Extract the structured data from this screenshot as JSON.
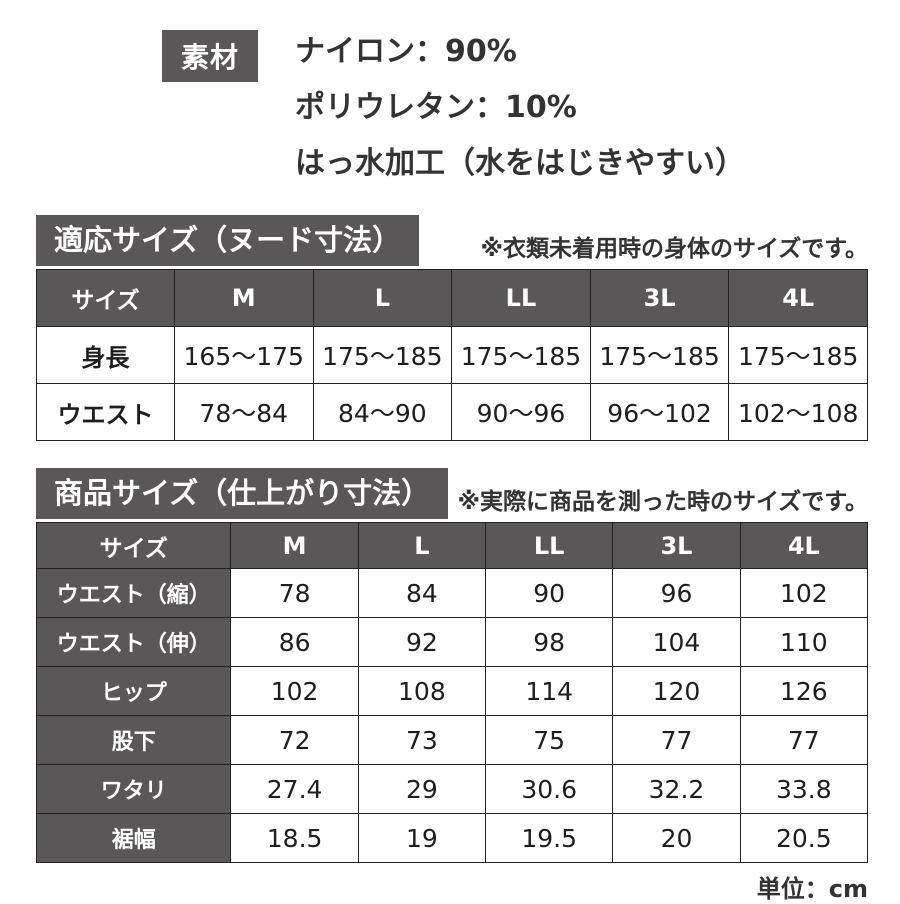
{
  "material": {
    "label": "素材",
    "lines": [
      "ナイロン：90%",
      "ポリウレタン：10%",
      "はっ水加工（水をはじきやすい）"
    ]
  },
  "sections": [
    {
      "title": "適応サイズ（ヌード寸法）",
      "note": "※衣類未着用時の身体のサイズです。",
      "table": {
        "header": [
          "サイズ",
          "M",
          "L",
          "LL",
          "3L",
          "4L"
        ],
        "rows": [
          {
            "label": "身長",
            "values": [
              "165～175",
              "175～185",
              "175～185",
              "175～185",
              "175～185"
            ]
          },
          {
            "label": "ウエスト",
            "values": [
              "78～84",
              "84～90",
              "90～96",
              "96～102",
              "102～108"
            ]
          }
        ]
      }
    },
    {
      "title": "商品サイズ（仕上がり寸法）",
      "note": "※実際に商品を測った時のサイズです。",
      "table": {
        "header": [
          "サイズ",
          "M",
          "L",
          "LL",
          "3L",
          "4L"
        ],
        "rows": [
          {
            "label": "ウエスト（縮）",
            "values": [
              "78",
              "84",
              "90",
              "96",
              "102"
            ]
          },
          {
            "label": "ウエスト（伸）",
            "values": [
              "86",
              "92",
              "98",
              "104",
              "110"
            ]
          },
          {
            "label": "ヒップ",
            "values": [
              "102",
              "108",
              "114",
              "120",
              "126"
            ]
          },
          {
            "label": "股下",
            "values": [
              "72",
              "73",
              "75",
              "77",
              "77"
            ]
          },
          {
            "label": "ワタリ",
            "values": [
              "27.4",
              "29",
              "30.6",
              "32.2",
              "33.8"
            ]
          },
          {
            "label": "裾幅",
            "values": [
              "18.5",
              "19",
              "19.5",
              "20",
              "20.5"
            ]
          }
        ]
      }
    }
  ],
  "footer": {
    "unit": "単位：cm"
  },
  "colors": {
    "dark_header": "#595757",
    "border": "#222222",
    "text": "#1e1e1e",
    "note_text": "#333333",
    "header_text": "#ffffff",
    "background": "#ffffff"
  },
  "table_column_widths": {
    "t1_first": "16.6%",
    "t1_data": "16.68%",
    "t2_first": "23.4%",
    "t2_data": "15.32%"
  }
}
